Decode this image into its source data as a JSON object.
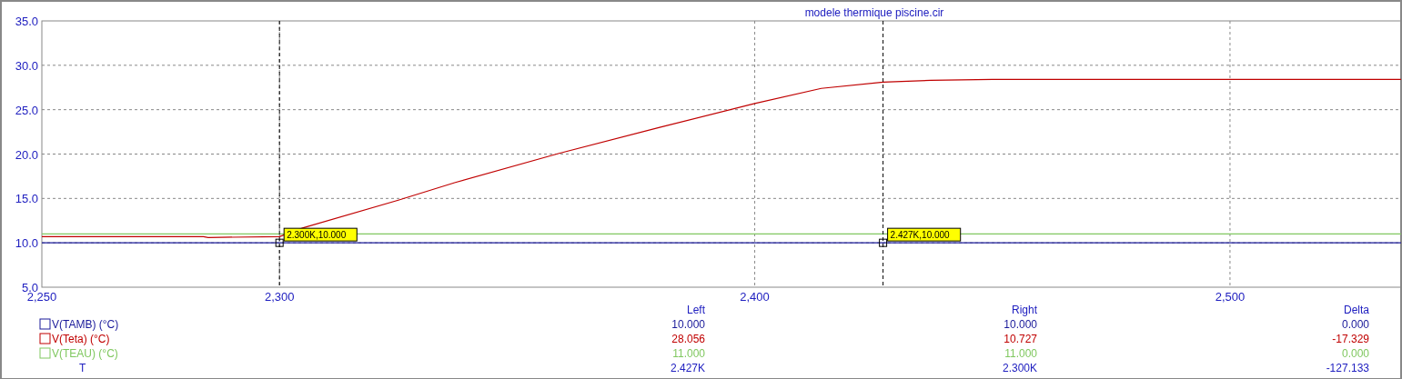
{
  "chart_data": {
    "type": "line",
    "title": "modele thermique piscine.cir",
    "xlim": [
      2250,
      2536
    ],
    "ylim": [
      5,
      35
    ],
    "xticks": [
      {
        "value": 2250,
        "label": "2,250"
      },
      {
        "value": 2300,
        "label": "2,300"
      },
      {
        "value": 2400,
        "label": "2,400"
      },
      {
        "value": 2500,
        "label": "2,500"
      }
    ],
    "yticks": [
      {
        "value": 5,
        "label": "5.0"
      },
      {
        "value": 10,
        "label": "10.0"
      },
      {
        "value": 15,
        "label": "15.0"
      },
      {
        "value": 20,
        "label": "20.0"
      },
      {
        "value": 25,
        "label": "25.0"
      },
      {
        "value": 30,
        "label": "30.0"
      },
      {
        "value": 35,
        "label": "35.0"
      }
    ],
    "grid": true,
    "legend": "bottom left",
    "line_style": "solid",
    "series": [
      {
        "name": "V(TAMB) (°C)",
        "color": "#1a1a9a",
        "x": [
          2250,
          2536
        ],
        "values": [
          10,
          10
        ]
      },
      {
        "name": "V(Teta) (°C)",
        "color": "#c00000",
        "x": [
          2250,
          2284,
          2285,
          2300,
          2305,
          2325,
          2337,
          2359,
          2380,
          2400,
          2414,
          2427,
          2437,
          2450,
          2536
        ],
        "values": [
          10.7,
          10.7,
          10.6,
          10.7,
          11.7,
          14.8,
          16.8,
          20.1,
          23.0,
          25.7,
          27.4,
          28.1,
          28.3,
          28.4,
          28.4
        ]
      },
      {
        "name": "V(TEAU) (°C)",
        "color": "#80c860",
        "x": [
          2250,
          2536
        ],
        "values": [
          11,
          11
        ]
      }
    ],
    "ref_lines": [
      {
        "axis": "x",
        "value": 2300,
        "label": "2.300K,10.000",
        "color": "#000000",
        "line_style": "dashed"
      },
      {
        "axis": "x",
        "value": 2427,
        "label": "2.427K,10.000",
        "color": "#000000",
        "line_style": "dashed"
      }
    ],
    "annotations": [
      "Left",
      "Right",
      "Delta",
      "10.000",
      "10.000",
      "0.000",
      "28.056",
      "10.727",
      "-17.329",
      "11.000",
      "11.000",
      "0.000",
      "T",
      "2.427K",
      "2.300K",
      "-127.133"
    ]
  }
}
